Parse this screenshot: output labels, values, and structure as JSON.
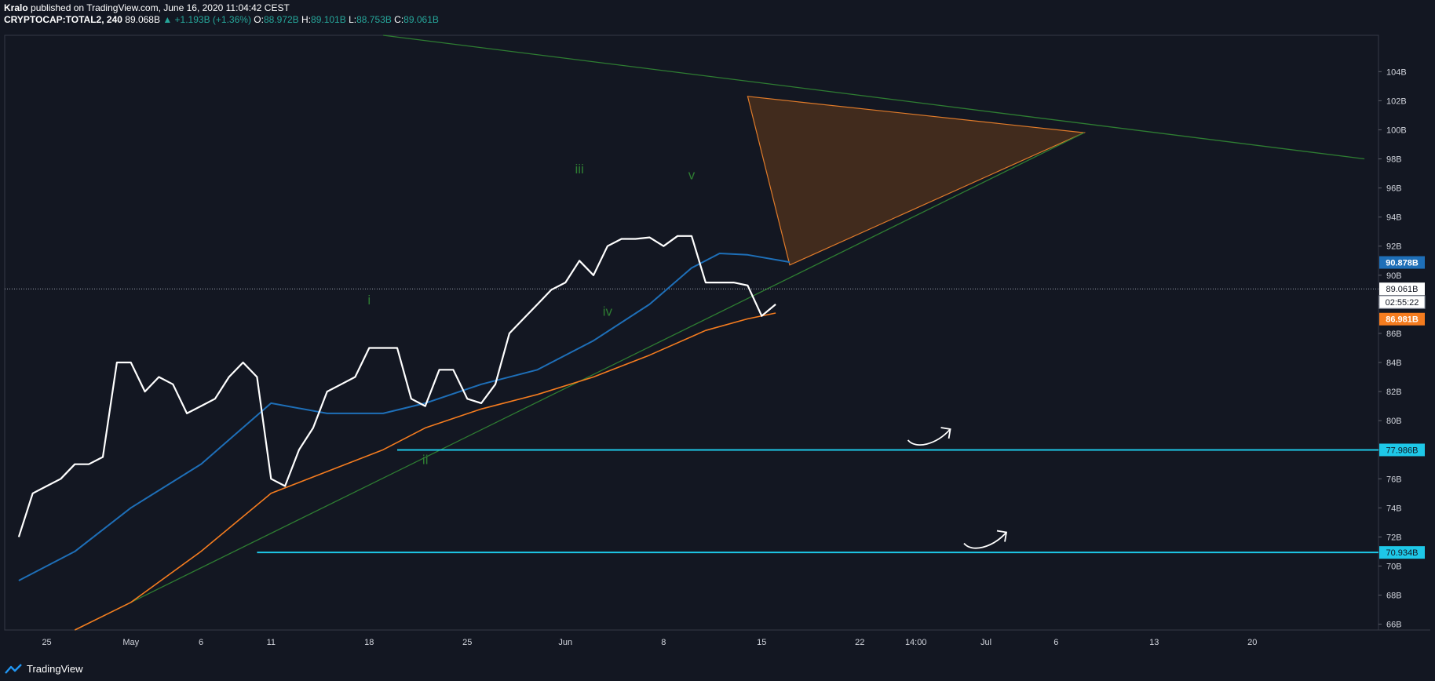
{
  "header": {
    "author": "Kralo",
    "published": "published on TradingView.com, June 16, 2020 11:04:42 CEST",
    "symbol": "CRYPTOCAP:TOTAL2, 240",
    "price": "89.068B",
    "change": "▲ +1.193B (+1.36%)",
    "open_label": "O:",
    "open": "88.972B",
    "high_label": "H:",
    "high": "89.101B",
    "low_label": "L:",
    "low": "88.753B",
    "close_label": "C:",
    "close": "89.061B"
  },
  "footer": {
    "brand": "TradingView"
  },
  "colors": {
    "background": "#131722",
    "price_line": "#ffffff",
    "ma_blue": "#1e6fb8",
    "ma_orange": "#f57c1f",
    "trendline": "#2e7d32",
    "support": "#1ec8e8",
    "triangle_fill": "#4a2f1c",
    "triangle_stroke": "#e07b2a"
  },
  "chart_data": {
    "type": "line",
    "y_unit": "B",
    "ylim": [
      65.6,
      106.5
    ],
    "x_ticks": [
      {
        "label": "25",
        "date": "2020-04-25"
      },
      {
        "label": "May",
        "date": "2020-05-01"
      },
      {
        "label": "6",
        "date": "2020-05-06"
      },
      {
        "label": "11",
        "date": "2020-05-11"
      },
      {
        "label": "18",
        "date": "2020-05-18"
      },
      {
        "label": "25",
        "date": "2020-05-25"
      },
      {
        "label": "Jun",
        "date": "2020-06-01"
      },
      {
        "label": "8",
        "date": "2020-06-08"
      },
      {
        "label": "15",
        "date": "2020-06-15"
      },
      {
        "label": "22",
        "date": "2020-06-22"
      },
      {
        "label": "14:00",
        "date": "2020-06-26"
      },
      {
        "label": "Jul",
        "date": "2020-07-01"
      },
      {
        "label": "6",
        "date": "2020-07-06"
      },
      {
        "label": "13",
        "date": "2020-07-13"
      },
      {
        "label": "20",
        "date": "2020-07-20"
      }
    ],
    "y_ticks": [
      66,
      68,
      70,
      72,
      74,
      76,
      78,
      80,
      82,
      84,
      86,
      88,
      90,
      92,
      94,
      96,
      98,
      100,
      102,
      104
    ],
    "series": [
      {
        "id": "price",
        "values": [
          [
            "2020-04-23",
            72
          ],
          [
            "2020-04-24",
            75
          ],
          [
            "2020-04-25",
            75.5
          ],
          [
            "2020-04-26",
            76
          ],
          [
            "2020-04-27",
            77
          ],
          [
            "2020-04-28",
            77
          ],
          [
            "2020-04-29",
            77.5
          ],
          [
            "2020-04-30",
            84
          ],
          [
            "2020-05-01",
            84
          ],
          [
            "2020-05-02",
            82
          ],
          [
            "2020-05-03",
            83
          ],
          [
            "2020-05-04",
            82.5
          ],
          [
            "2020-05-05",
            80.5
          ],
          [
            "2020-05-06",
            81
          ],
          [
            "2020-05-07",
            81.5
          ],
          [
            "2020-05-08",
            83
          ],
          [
            "2020-05-09",
            84
          ],
          [
            "2020-05-10",
            83
          ],
          [
            "2020-05-11",
            76
          ],
          [
            "2020-05-12",
            75.5
          ],
          [
            "2020-05-13",
            78
          ],
          [
            "2020-05-14",
            79.5
          ],
          [
            "2020-05-15",
            82
          ],
          [
            "2020-05-16",
            82.5
          ],
          [
            "2020-05-17",
            83
          ],
          [
            "2020-05-18",
            85
          ],
          [
            "2020-05-19",
            85
          ],
          [
            "2020-05-20",
            85
          ],
          [
            "2020-05-21",
            81.5
          ],
          [
            "2020-05-22",
            81
          ],
          [
            "2020-05-23",
            83.5
          ],
          [
            "2020-05-24",
            83.5
          ],
          [
            "2020-05-25",
            81.5
          ],
          [
            "2020-05-26",
            81.2
          ],
          [
            "2020-05-27",
            82.5
          ],
          [
            "2020-05-28",
            86
          ],
          [
            "2020-05-29",
            87
          ],
          [
            "2020-05-30",
            88
          ],
          [
            "2020-05-31",
            89
          ],
          [
            "2020-06-01",
            89.5
          ],
          [
            "2020-06-02",
            91
          ],
          [
            "2020-06-03",
            90
          ],
          [
            "2020-06-04",
            92
          ],
          [
            "2020-06-05",
            92.5
          ],
          [
            "2020-06-06",
            92.5
          ],
          [
            "2020-06-07",
            92.6
          ],
          [
            "2020-06-08",
            92
          ],
          [
            "2020-06-09",
            92.7
          ],
          [
            "2020-06-10",
            92.7
          ],
          [
            "2020-06-11",
            89.5
          ],
          [
            "2020-06-12",
            89.5
          ],
          [
            "2020-06-13",
            89.5
          ],
          [
            "2020-06-14",
            89.3
          ],
          [
            "2020-06-15",
            87.2
          ],
          [
            "2020-06-16",
            88
          ]
        ]
      },
      {
        "id": "ma_blue",
        "values": [
          [
            "2020-04-23",
            69
          ],
          [
            "2020-04-27",
            71
          ],
          [
            "2020-05-01",
            74
          ],
          [
            "2020-05-06",
            77
          ],
          [
            "2020-05-11",
            81.2
          ],
          [
            "2020-05-15",
            80.5
          ],
          [
            "2020-05-19",
            80.5
          ],
          [
            "2020-05-22",
            81.2
          ],
          [
            "2020-05-26",
            82.5
          ],
          [
            "2020-05-30",
            83.5
          ],
          [
            "2020-06-03",
            85.5
          ],
          [
            "2020-06-07",
            88
          ],
          [
            "2020-06-10",
            90.5
          ],
          [
            "2020-06-12",
            91.5
          ],
          [
            "2020-06-14",
            91.4
          ],
          [
            "2020-06-17",
            90.9
          ]
        ]
      },
      {
        "id": "ma_orange",
        "values": [
          [
            "2020-04-27",
            65.6
          ],
          [
            "2020-05-01",
            67.5
          ],
          [
            "2020-05-06",
            71
          ],
          [
            "2020-05-11",
            75
          ],
          [
            "2020-05-15",
            76.5
          ],
          [
            "2020-05-19",
            78
          ],
          [
            "2020-05-22",
            79.5
          ],
          [
            "2020-05-26",
            80.8
          ],
          [
            "2020-05-30",
            81.8
          ],
          [
            "2020-06-03",
            83
          ],
          [
            "2020-06-07",
            84.5
          ],
          [
            "2020-06-11",
            86.2
          ],
          [
            "2020-06-14",
            87
          ],
          [
            "2020-06-16",
            87.4
          ]
        ]
      }
    ],
    "last_values": [
      {
        "id": "ma_blue",
        "label": "90.878B",
        "value": 90.878
      },
      {
        "id": "price",
        "label": "89.061B",
        "value": 89.061
      },
      {
        "id": "countdown",
        "label": "02:55:22",
        "value": 88.15
      },
      {
        "id": "ma_orange",
        "label": "86.981B",
        "value": 86.981
      },
      {
        "id": "support_1",
        "label": "77.986B",
        "value": 77.986
      },
      {
        "id": "support_2",
        "label": "70.934B",
        "value": 70.934
      }
    ],
    "support_levels": [
      {
        "id": "support_1",
        "value": 77.986,
        "from": "2020-05-20"
      },
      {
        "id": "support_2",
        "value": 70.934,
        "from": "2020-05-10"
      }
    ],
    "trendlines": [
      {
        "id": "upper",
        "from": [
          "2020-05-19",
          106.5
        ],
        "to": [
          "2020-07-28",
          98.0
        ]
      },
      {
        "id": "lower",
        "from": [
          "2020-04-27",
          65.6
        ],
        "to": [
          "2020-07-08",
          99.8
        ]
      }
    ],
    "triangle": [
      [
        "2020-06-14",
        102.3
      ],
      [
        "2020-07-08",
        99.8
      ],
      [
        "2020-06-17",
        90.7
      ]
    ],
    "wave_labels": [
      {
        "text": "i",
        "date": "2020-05-18",
        "value": 88
      },
      {
        "text": "ii",
        "date": "2020-05-22",
        "value": 77
      },
      {
        "text": "iii",
        "date": "2020-06-02",
        "value": 97
      },
      {
        "text": "iv",
        "date": "2020-06-04",
        "value": 87.2
      },
      {
        "text": "v",
        "date": "2020-06-10",
        "value": 96.6
      }
    ],
    "arrows": [
      {
        "date": "2020-06-27",
        "value": 79.2
      },
      {
        "date": "2020-07-01",
        "value": 72.1
      }
    ]
  }
}
